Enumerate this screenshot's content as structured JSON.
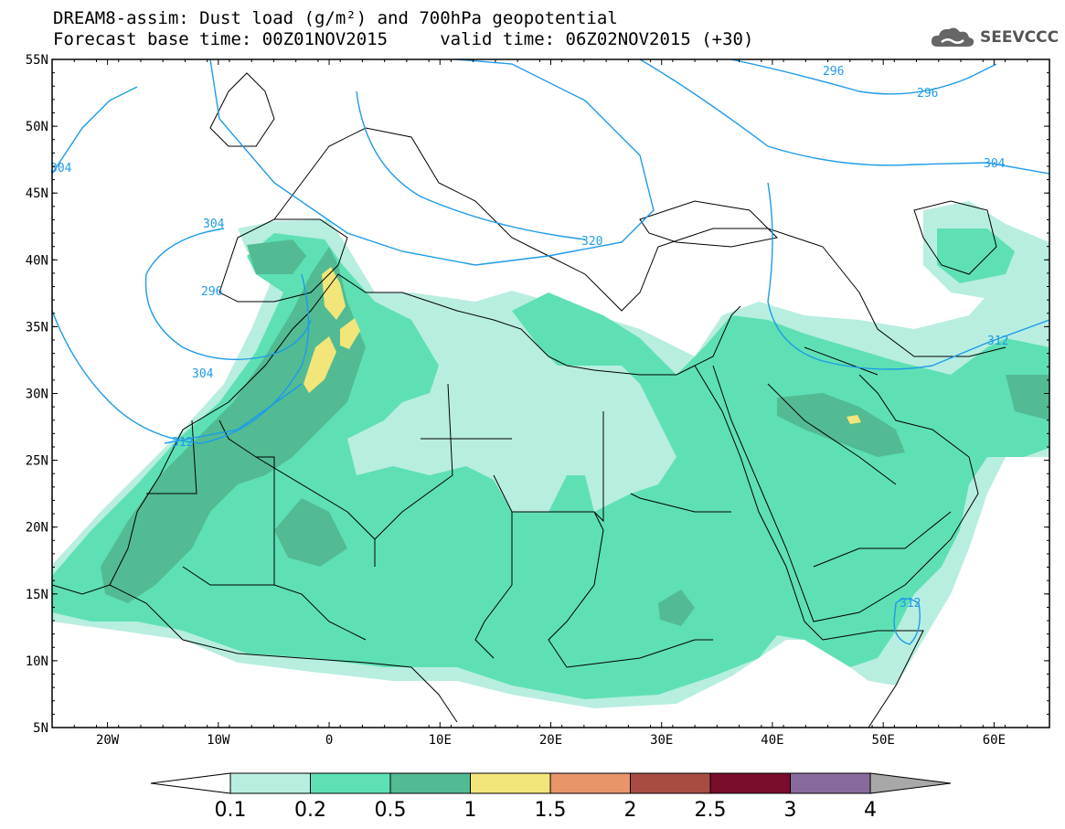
{
  "title": {
    "line1": "DREAM8-assim: Dust load (g/m²) and 700hPa geopotential",
    "line2": "Forecast base time: 00Z01NOV2015     valid time: 06Z02NOV2015 (+30)"
  },
  "logo": {
    "text": "SEEVCCC",
    "icon": "cloud-icon"
  },
  "axes": {
    "lat_labels": [
      "55N",
      "50N",
      "45N",
      "40N",
      "35N",
      "30N",
      "25N",
      "20N",
      "15N",
      "10N",
      "5N"
    ],
    "lon_labels": [
      "20W",
      "10W",
      "0",
      "10E",
      "20E",
      "30E",
      "40E",
      "50E",
      "60E"
    ],
    "lat_range": [
      5,
      55
    ],
    "lon_range": [
      -25,
      65
    ]
  },
  "colorbar": {
    "levels": [
      "0.1",
      "0.2",
      "0.5",
      "1",
      "1.5",
      "2",
      "2.5",
      "3",
      "4"
    ],
    "colors": [
      "#b8eee0",
      "#5ee0b4",
      "#52bb93",
      "#f2e67a",
      "#e8956a",
      "#a84c42",
      "#7a0c2c",
      "#876a9b"
    ],
    "under_color": "#ffffff",
    "over_color": "#a8a8a8"
  },
  "geopotential_labels": [
    "296",
    "296",
    "304",
    "304",
    "296",
    "304",
    "312",
    "320",
    "312",
    "312"
  ],
  "colors": {
    "contour": "#1e9be8",
    "border": "#000000"
  }
}
